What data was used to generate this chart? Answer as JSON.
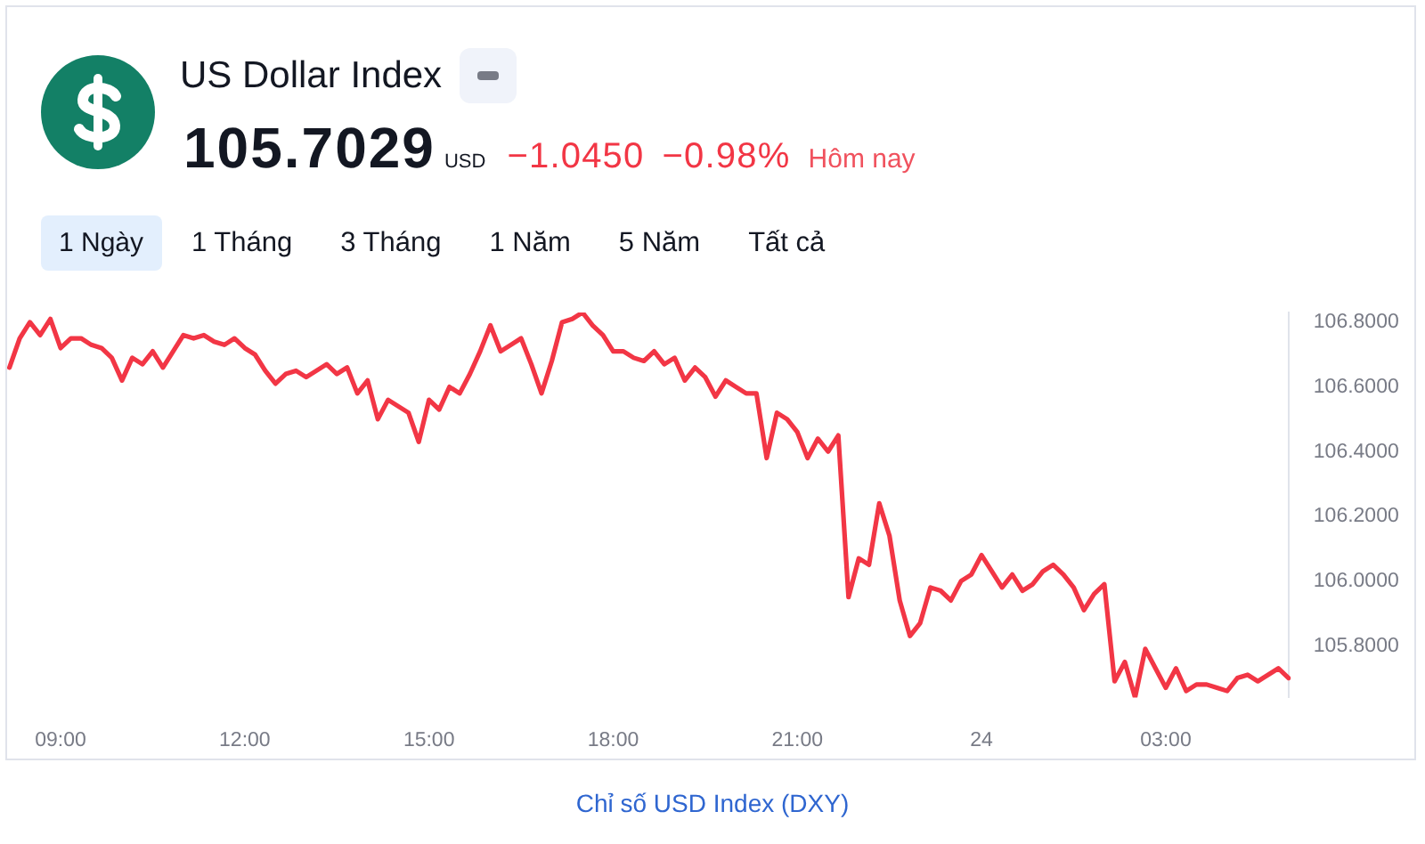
{
  "chart_data": {
    "type": "line",
    "title": "US Dollar Index",
    "annotations": [
      "105.7029",
      "USD",
      "−1.0450",
      "−0.98%",
      "Hôm nay",
      "1 Ngày",
      "1 Tháng",
      "3 Tháng",
      "1 Năm",
      "5 Năm",
      "Tất cả",
      "Chỉ số USD Index (DXY)"
    ],
    "color": "#f23645",
    "categories": [
      null,
      null,
      null,
      null,
      null,
      "09:00",
      null,
      null,
      null,
      null,
      null,
      null,
      null,
      null,
      null,
      null,
      null,
      null,
      null,
      null,
      null,
      null,
      null,
      "12:00",
      null,
      null,
      null,
      null,
      null,
      null,
      null,
      null,
      null,
      null,
      null,
      null,
      null,
      null,
      null,
      null,
      null,
      "15:00",
      null,
      null,
      null,
      null,
      null,
      null,
      null,
      null,
      null,
      null,
      null,
      null,
      null,
      null,
      null,
      null,
      null,
      "18:00",
      null,
      null,
      null,
      null,
      null,
      null,
      null,
      null,
      null,
      null,
      null,
      null,
      null,
      null,
      null,
      null,
      null,
      "21:00",
      null,
      null,
      null,
      null,
      null,
      null,
      null,
      null,
      null,
      null,
      null,
      null,
      null,
      null,
      null,
      null,
      null,
      "24",
      null,
      null,
      null,
      null,
      null,
      null,
      null,
      null,
      null,
      null,
      null,
      null,
      null,
      null,
      null,
      null,
      null,
      "03:00",
      null,
      null,
      null,
      null,
      null,
      null,
      null,
      null,
      null,
      null,
      null,
      null
    ],
    "values": [
      106.66,
      106.75,
      106.8,
      106.76,
      106.81,
      106.72,
      106.75,
      106.75,
      106.73,
      106.72,
      106.69,
      106.62,
      106.69,
      106.67,
      106.71,
      106.66,
      106.71,
      106.76,
      106.75,
      106.76,
      106.74,
      106.73,
      106.75,
      106.72,
      106.7,
      106.65,
      106.61,
      106.64,
      106.65,
      106.63,
      106.65,
      106.67,
      106.64,
      106.66,
      106.58,
      106.62,
      106.5,
      106.56,
      106.54,
      106.52,
      106.43,
      106.56,
      106.53,
      106.6,
      106.58,
      106.64,
      106.71,
      106.79,
      106.71,
      106.73,
      106.75,
      106.67,
      106.58,
      106.68,
      106.8,
      106.81,
      106.83,
      106.79,
      106.76,
      106.71,
      106.71,
      106.69,
      106.68,
      106.71,
      106.67,
      106.69,
      106.62,
      106.66,
      106.63,
      106.57,
      106.62,
      106.6,
      106.58,
      106.58,
      106.38,
      106.52,
      106.5,
      106.46,
      106.38,
      106.44,
      106.4,
      106.45,
      105.95,
      106.07,
      106.05,
      106.24,
      106.14,
      105.94,
      105.83,
      105.87,
      105.98,
      105.97,
      105.94,
      106.0,
      106.02,
      106.08,
      106.03,
      105.98,
      106.02,
      105.97,
      105.99,
      106.03,
      106.05,
      106.02,
      105.98,
      105.91,
      105.96,
      105.99,
      105.69,
      105.75,
      105.64,
      105.79,
      105.73,
      105.67,
      105.73,
      105.66,
      105.68,
      105.68,
      105.67,
      105.66,
      105.7,
      105.71,
      105.69,
      105.71,
      105.73,
      105.7
    ],
    "ylim": [
      105.64,
      106.83
    ],
    "yticks": [
      {
        "value": 105.8,
        "label": "105.8000"
      },
      {
        "value": 106,
        "label": "106.0000"
      },
      {
        "value": 106.2,
        "label": "106.2000"
      },
      {
        "value": 106.4,
        "label": "106.4000"
      },
      {
        "value": 106.6,
        "label": "106.6000"
      },
      {
        "value": 106.8,
        "label": "106.8000"
      }
    ]
  }
}
